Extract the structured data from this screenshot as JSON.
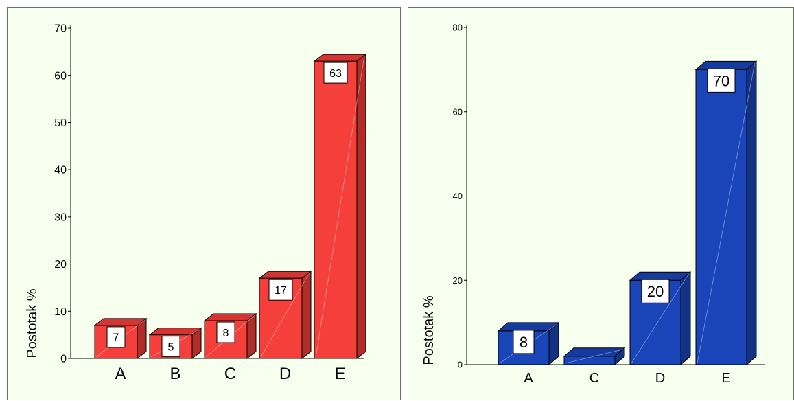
{
  "colors": {
    "panel_background": "#f7ffef",
    "left_bar": "#f53f3a",
    "right_bar": "#1a45b8"
  },
  "chart_data": [
    {
      "type": "bar",
      "title": "",
      "xlabel": "",
      "ylabel": "Postotak %",
      "categories": [
        "A",
        "B",
        "C",
        "D",
        "E"
      ],
      "values": [
        7,
        5,
        8,
        17,
        63
      ],
      "data_labels": [
        "7",
        "5",
        "8",
        "17",
        "63"
      ],
      "ylim": [
        0,
        70
      ],
      "yticks": [
        0,
        10,
        20,
        30,
        40,
        50,
        60,
        70
      ],
      "bar_style": "3d",
      "color": "#f53f3a"
    },
    {
      "type": "bar",
      "title": "",
      "xlabel": "",
      "ylabel": "Postotak %",
      "categories": [
        "A",
        "C",
        "D",
        "E"
      ],
      "values": [
        8,
        2,
        20,
        70
      ],
      "data_labels": [
        "8",
        "",
        "20",
        "70"
      ],
      "ylim": [
        0,
        80
      ],
      "yticks": [
        0,
        20,
        40,
        60,
        80
      ],
      "bar_style": "3d",
      "color": "#1a45b8"
    }
  ]
}
